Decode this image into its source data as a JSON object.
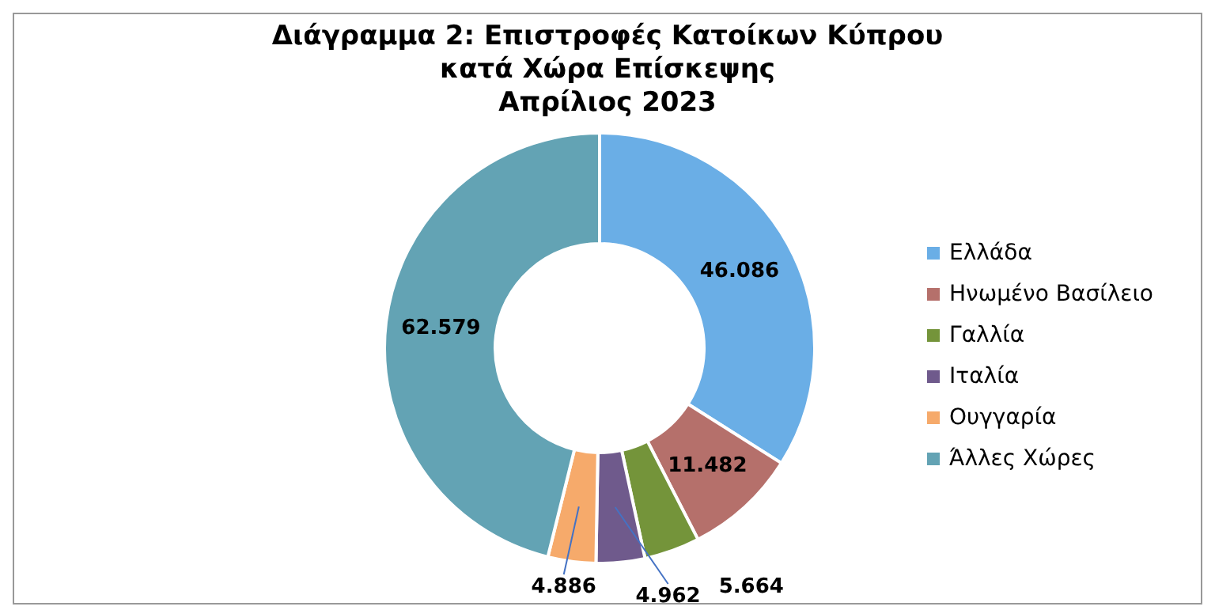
{
  "chart_data": {
    "type": "donut",
    "title": "Διάγραμμα 2: Επιστροφές Κατοίκων Κύπρου\nκατά Χώρα Επίσκεψης\nΑπρίλιος 2023",
    "categories": [
      "Ελλάδα",
      "Ηνωμένο Βασίλειο",
      "Γαλλία",
      "Ιταλία",
      "Ουγγαρία",
      "Άλλες Χώρες"
    ],
    "values": [
      46086,
      11482,
      5664,
      4962,
      4886,
      62579
    ],
    "value_labels": [
      "46.086",
      "11.482",
      "5.664",
      "4.962",
      "4.886",
      "62.579"
    ],
    "colors": [
      "#6aaee6",
      "#b5706b",
      "#74943a",
      "#6f5a8c",
      "#f6aa6b",
      "#63a3b4"
    ],
    "legend": "right"
  }
}
